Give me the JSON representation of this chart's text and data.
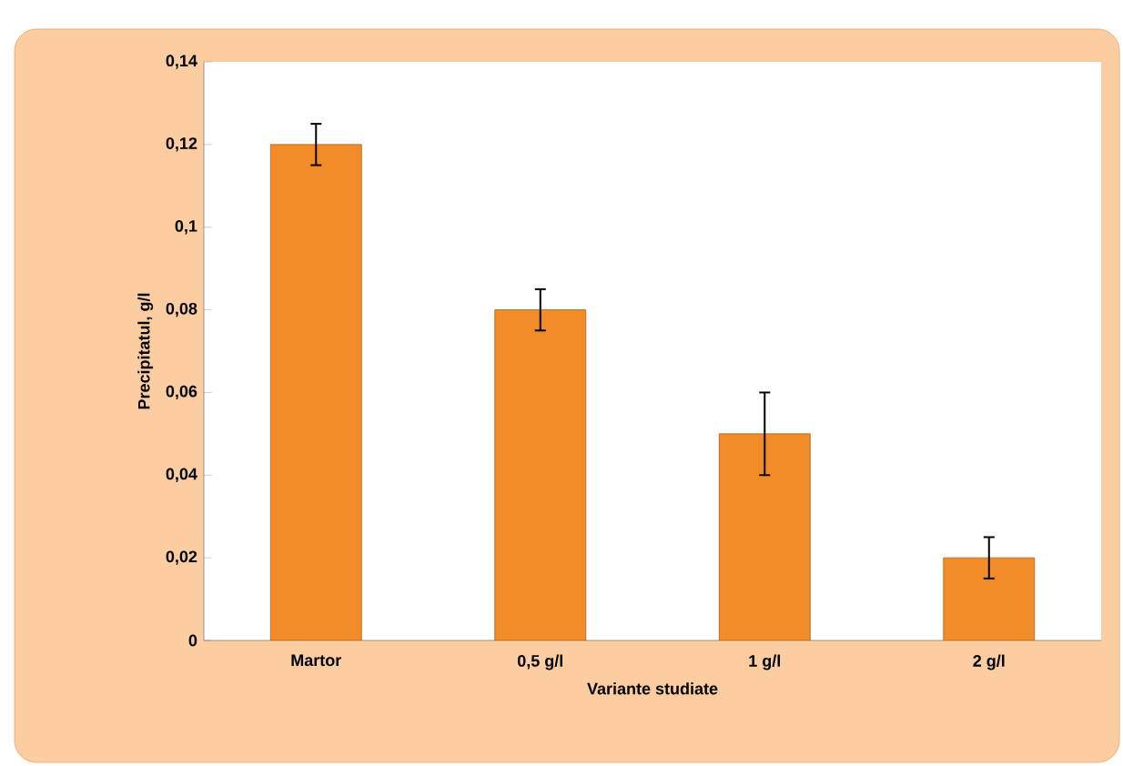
{
  "chart_data": {
    "type": "bar",
    "xlabel": "Variante studiate",
    "ylabel": "Precipitatul, g/l",
    "categories": [
      "Martor",
      "0,5 g/l",
      "1 g/l",
      "2 g/l"
    ],
    "values": [
      0.12,
      0.08,
      0.05,
      0.02
    ],
    "errors": [
      0.005,
      0.005,
      0.01,
      0.005
    ],
    "color": "#f28c28",
    "ylim": [
      0,
      0.14
    ],
    "yticks": [
      0,
      {
        "value": 0.02,
        "label": "0,02"
      },
      {
        "value": 0.04,
        "label": "0,04"
      },
      {
        "value": 0.06,
        "label": "0,06"
      },
      {
        "value": 0.08,
        "label": "0,08"
      },
      {
        "value": 0.1,
        "label": "0,1"
      },
      {
        "value": 0.12,
        "label": "0,12"
      },
      {
        "value": 0.14,
        "label": "0,14"
      }
    ],
    "grid": false
  }
}
